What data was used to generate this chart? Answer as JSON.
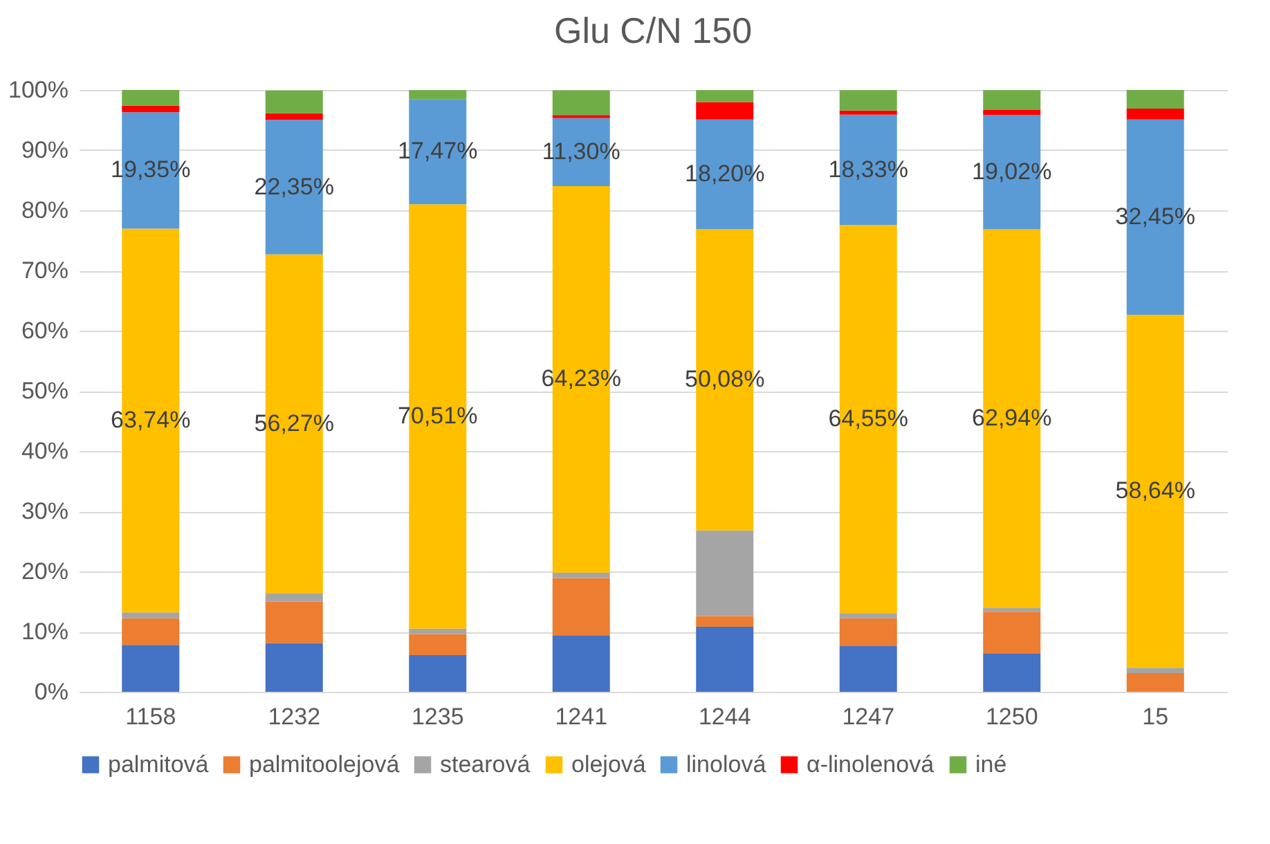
{
  "chart_data": {
    "type": "bar",
    "title": "Glu C/N 150",
    "stacked": true,
    "categories": [
      "1158",
      "1232",
      "1235",
      "1241",
      "1244",
      "1247",
      "1250",
      "15"
    ],
    "ylim": [
      0,
      100
    ],
    "yticks": [
      {
        "value": 0,
        "label": "0%"
      },
      {
        "value": 10,
        "label": "10%"
      },
      {
        "value": 20,
        "label": "20%"
      },
      {
        "value": 30,
        "label": "30%"
      },
      {
        "value": 40,
        "label": "40%"
      },
      {
        "value": 50,
        "label": "50%"
      },
      {
        "value": 60,
        "label": "60%"
      },
      {
        "value": 70,
        "label": "70%"
      },
      {
        "value": 80,
        "label": "80%"
      },
      {
        "value": 90,
        "label": "90%"
      },
      {
        "value": 100,
        "label": "100%"
      }
    ],
    "grid": "y",
    "legend": "bottom",
    "series": [
      {
        "name": "palmitová",
        "color": "#4472c4",
        "values": [
          7.8,
          8.1,
          6.1,
          9.4,
          10.8,
          7.6,
          6.4,
          0
        ]
      },
      {
        "name": "palmitoolejová",
        "color": "#ed7d31",
        "values": [
          4.4,
          6.9,
          3.5,
          9.5,
          1.8,
          4.6,
          6.9,
          3.1
        ]
      },
      {
        "name": "stearová",
        "color": "#a5a5a5",
        "values": [
          1.0,
          1.4,
          0.9,
          0.9,
          14.2,
          0.8,
          0.6,
          0.9
        ]
      },
      {
        "name": "olejová",
        "color": "#ffc000",
        "values": [
          63.74,
          56.27,
          70.51,
          64.23,
          50.08,
          64.55,
          62.94,
          58.64
        ],
        "value_labels": [
          "63,74%",
          "56,27%",
          "70,51%",
          "64,23%",
          "50,08%",
          "64,55%",
          "62,94%",
          "58,64%"
        ]
      },
      {
        "name": "linolová",
        "color": "#5b9bd5",
        "values": [
          19.35,
          22.35,
          17.47,
          11.3,
          18.2,
          18.33,
          19.02,
          32.45
        ],
        "value_labels": [
          "19,35%",
          "22,35%",
          "17,47%",
          "11,30%",
          "18,20%",
          "18,33%",
          "19,02%",
          "32,45%"
        ]
      },
      {
        "name": "α-linolenová",
        "color": "#ff0000",
        "values": [
          1.1,
          1.1,
          0,
          0.5,
          2.9,
          0.7,
          0.8,
          1.8
        ]
      },
      {
        "name": "iné",
        "color": "#70ad47",
        "values": [
          2.6,
          3.8,
          1.5,
          4.1,
          2.0,
          3.4,
          3.3,
          3.1
        ]
      }
    ]
  }
}
